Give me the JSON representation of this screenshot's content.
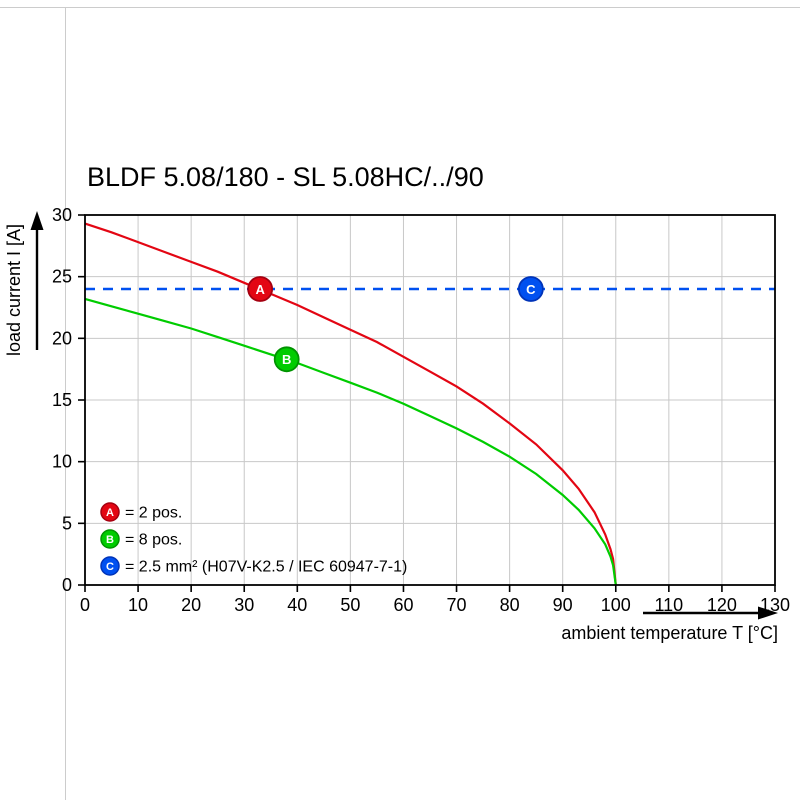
{
  "title": "BLDF 5.08/180 - SL 5.08HC/../90",
  "chart_data": {
    "type": "line",
    "title": "BLDF 5.08/180 - SL 5.08HC/../90",
    "xlabel": "ambient temperature T [°C]",
    "ylabel": "load current I [A]",
    "xlim": [
      0,
      130
    ],
    "ylim": [
      0,
      30
    ],
    "x_ticks": [
      0,
      10,
      20,
      30,
      40,
      50,
      60,
      70,
      80,
      90,
      100,
      110,
      120,
      130
    ],
    "y_ticks": [
      0,
      5,
      10,
      15,
      20,
      25,
      30
    ],
    "grid": true,
    "grid_color": "#c8c8c8",
    "frame_color": "#000000",
    "legend_position": "inside-bottom-left",
    "series": [
      {
        "name": "A",
        "legend_label": "= 2 pos.",
        "color": "#e30613",
        "ring_color": "#a50010",
        "style": "solid",
        "points": [
          [
            0,
            29.3
          ],
          [
            5,
            28.6
          ],
          [
            10,
            27.8
          ],
          [
            15,
            27.0
          ],
          [
            20,
            26.2
          ],
          [
            25,
            25.4
          ],
          [
            30,
            24.5
          ],
          [
            35,
            23.6
          ],
          [
            40,
            22.7
          ],
          [
            45,
            21.7
          ],
          [
            50,
            20.7
          ],
          [
            55,
            19.7
          ],
          [
            60,
            18.5
          ],
          [
            65,
            17.3
          ],
          [
            70,
            16.1
          ],
          [
            75,
            14.7
          ],
          [
            80,
            13.1
          ],
          [
            85,
            11.4
          ],
          [
            90,
            9.3
          ],
          [
            93,
            7.8
          ],
          [
            96,
            5.9
          ],
          [
            98,
            4.1
          ],
          [
            99,
            2.9
          ],
          [
            99.5,
            2.1
          ],
          [
            100,
            0
          ]
        ],
        "marker": {
          "t": 33,
          "i": 24
        }
      },
      {
        "name": "B",
        "legend_label": "= 8 pos.",
        "color": "#00cc00",
        "ring_color": "#009300",
        "style": "solid",
        "points": [
          [
            0,
            23.2
          ],
          [
            5,
            22.6
          ],
          [
            10,
            22.0
          ],
          [
            15,
            21.4
          ],
          [
            20,
            20.8
          ],
          [
            25,
            20.1
          ],
          [
            30,
            19.4
          ],
          [
            35,
            18.7
          ],
          [
            40,
            18.0
          ],
          [
            45,
            17.2
          ],
          [
            50,
            16.4
          ],
          [
            55,
            15.6
          ],
          [
            60,
            14.7
          ],
          [
            65,
            13.7
          ],
          [
            70,
            12.7
          ],
          [
            75,
            11.6
          ],
          [
            80,
            10.4
          ],
          [
            85,
            9.0
          ],
          [
            90,
            7.3
          ],
          [
            93,
            6.1
          ],
          [
            96,
            4.6
          ],
          [
            98,
            3.3
          ],
          [
            99,
            2.3
          ],
          [
            99.5,
            1.6
          ],
          [
            100,
            0
          ]
        ],
        "marker": {
          "t": 38,
          "i": 18.3
        }
      },
      {
        "name": "C",
        "legend_label": "= 2.5 mm² (H07V-K2.5 / IEC 60947-7-1)",
        "color": "#0050f0",
        "ring_color": "#0033b8",
        "style": "dashed",
        "points": [
          [
            0,
            24
          ],
          [
            130,
            24
          ]
        ],
        "marker": {
          "t": 84,
          "i": 24
        }
      }
    ]
  }
}
